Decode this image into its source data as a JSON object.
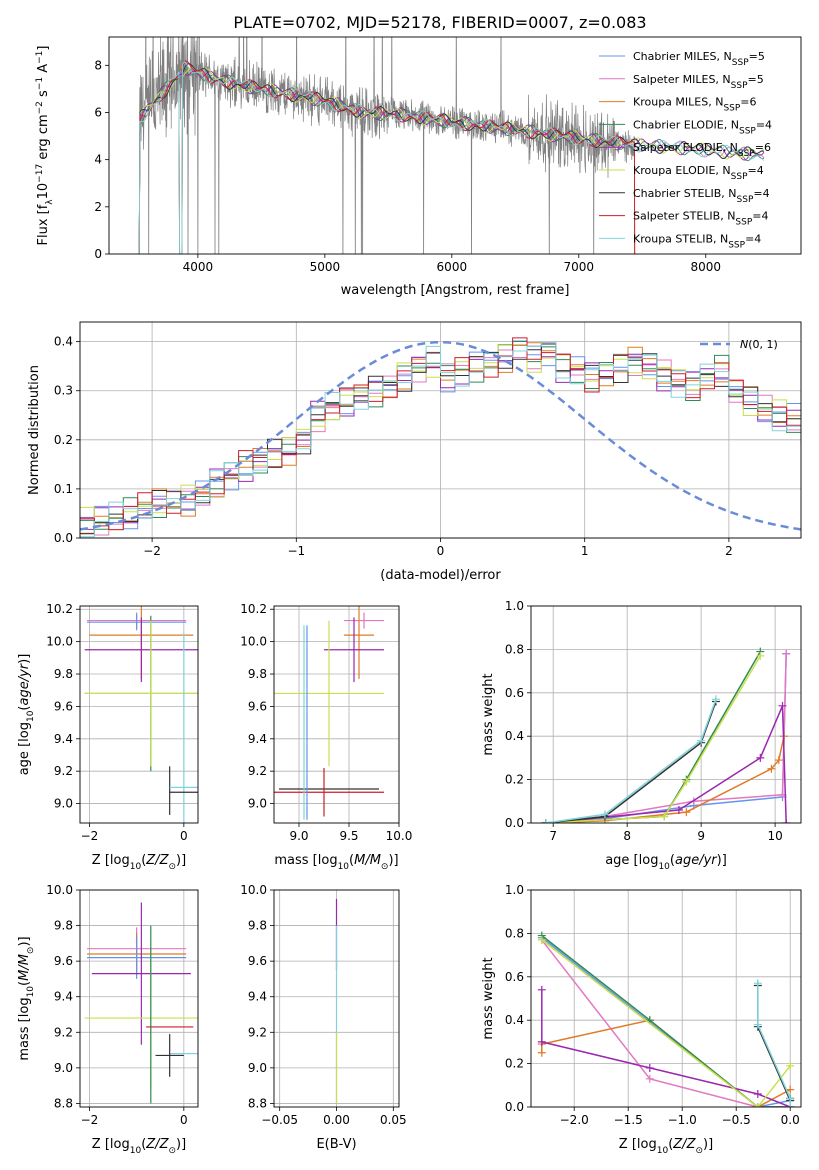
{
  "figure_title": "PLATE=0702, MJD=52178, FIBERID=0007, z=0.083",
  "colors": {
    "data": "#808080",
    "chabrier_miles": "#6495ED",
    "salpeter_miles": "#E377C2",
    "kroupa_miles": "#E07B24",
    "chabrier_elodie": "#2E8B57",
    "salpeter_elodie": "#9B27AF",
    "kroupa_elodie": "#C9E04C",
    "chabrier_stelib": "#333333",
    "salpeter_stelib": "#CC1E2E",
    "kroupa_stelib": "#7FD4DC",
    "normal": "#6A8BD8"
  },
  "legend": {
    "entries": [
      {
        "key": "chabrier_miles",
        "label": "Chabrier MILES, N",
        "sub": "SSP",
        "suffix": "=5"
      },
      {
        "key": "salpeter_miles",
        "label": "Salpeter MILES, N",
        "sub": "SSP",
        "suffix": "=5"
      },
      {
        "key": "kroupa_miles",
        "label": "Kroupa MILES, N",
        "sub": "SSP",
        "suffix": "=6"
      },
      {
        "key": "chabrier_elodie",
        "label": "Chabrier ELODIE, N",
        "sub": "SSP",
        "suffix": "=4"
      },
      {
        "key": "salpeter_elodie",
        "label": "Salpeter ELODIE, N",
        "sub": "SSP",
        "suffix": "=6"
      },
      {
        "key": "kroupa_elodie",
        "label": "Kroupa ELODIE, N",
        "sub": "SSP",
        "suffix": "=4"
      },
      {
        "key": "chabrier_stelib",
        "label": "Chabrier STELIB, N",
        "sub": "SSP",
        "suffix": "=4"
      },
      {
        "key": "salpeter_stelib",
        "label": "Salpeter STELIB, N",
        "sub": "SSP",
        "suffix": "=4"
      },
      {
        "key": "kroupa_stelib",
        "label": "Kroupa STELIB, N",
        "sub": "SSP",
        "suffix": "=4"
      }
    ]
  },
  "chart_data": [
    {
      "type": "line",
      "id": "spectrum",
      "xlabel": "wavelength [Angstrom, rest frame]",
      "ylabel_main": "Flux [f",
      "ylabel_sub": "λ",
      "ylabel_rest": "10",
      "ylabel_sup1": "−17",
      "ylabel_mid": " erg cm",
      "ylabel_sup2": "−2",
      "ylabel_s": " s",
      "ylabel_sup3": "−1",
      "ylabel_end": " A",
      "ylabel_sup4": "−1",
      "ylabel_close": "]",
      "xlim": [
        3300,
        8750
      ],
      "ylim": [
        0,
        9.2
      ],
      "xticks": [
        4000,
        5000,
        6000,
        7000,
        8000
      ],
      "yticks": [
        0,
        2,
        4,
        6,
        8
      ],
      "data_range": [
        3520,
        7440
      ],
      "model_range": [
        3520,
        8460
      ],
      "continuum": [
        [
          3520,
          5.6
        ],
        [
          3700,
          6.7
        ],
        [
          3900,
          7.9
        ],
        [
          4100,
          7.5
        ],
        [
          4300,
          7.2
        ],
        [
          4600,
          6.9
        ],
        [
          5000,
          6.5
        ],
        [
          5300,
          6.0
        ],
        [
          5600,
          5.9
        ],
        [
          6000,
          5.6
        ],
        [
          6300,
          5.4
        ],
        [
          6600,
          5.2
        ],
        [
          7000,
          4.9
        ],
        [
          7400,
          4.65
        ],
        [
          7800,
          4.5
        ],
        [
          8200,
          4.3
        ],
        [
          8460,
          4.2
        ]
      ],
      "series": [
        "chabrier_miles",
        "salpeter_miles",
        "kroupa_miles",
        "chabrier_elodie",
        "salpeter_elodie",
        "kroupa_elodie",
        "chabrier_stelib",
        "salpeter_stelib",
        "kroupa_stelib"
      ]
    },
    {
      "type": "histogram",
      "id": "residuals",
      "xlabel": "(data-model)/error",
      "ylabel": "Normed distribution",
      "xlim": [
        -2.5,
        2.5
      ],
      "ylim": [
        0,
        0.44
      ],
      "xticks": [
        -2,
        -1,
        0,
        1,
        2
      ],
      "yticks": [
        0.0,
        0.1,
        0.2,
        0.3,
        0.4
      ],
      "legend_label": "N(0, 1)",
      "bin_edges_start": -2.5,
      "bin_width": 0.1,
      "base": [
        0.03,
        0.035,
        0.04,
        0.05,
        0.06,
        0.07,
        0.072,
        0.075,
        0.09,
        0.11,
        0.13,
        0.145,
        0.155,
        0.17,
        0.18,
        0.2,
        0.25,
        0.265,
        0.28,
        0.29,
        0.3,
        0.31,
        0.33,
        0.35,
        0.36,
        0.33,
        0.34,
        0.35,
        0.36,
        0.37,
        0.39,
        0.37,
        0.38,
        0.35,
        0.34,
        0.33,
        0.34,
        0.35,
        0.36,
        0.35,
        0.33,
        0.32,
        0.31,
        0.33,
        0.34,
        0.3,
        0.28,
        0.26,
        0.25,
        0.24,
        0.22,
        0.21,
        0.2,
        0.19,
        0.17,
        0.16,
        0.15,
        0.13,
        0.12,
        0.11,
        0.1,
        0.09,
        0.08,
        0.075,
        0.07,
        0.065,
        0.06,
        0.055,
        0.05,
        0.045,
        0.04,
        0.04,
        0.035,
        0.035,
        0.03,
        0.03,
        0.03,
        0.03,
        0.03,
        0.03
      ],
      "series": [
        "chabrier_miles",
        "salpeter_miles",
        "kroupa_miles",
        "chabrier_elodie",
        "salpeter_elodie",
        "kroupa_elodie",
        "chabrier_stelib",
        "salpeter_stelib",
        "kroupa_stelib"
      ]
    },
    {
      "type": "errorbar",
      "id": "z_age",
      "xlabel": "Z [log10(Z/Z⊙)]",
      "ylabel": "age  [log10(age/yr)]",
      "xlim": [
        -2.2,
        0.3
      ],
      "ylim": [
        8.88,
        10.22
      ],
      "xticks": [
        -2,
        0
      ],
      "yticks": [
        9.0,
        9.2,
        9.4,
        9.6,
        9.8,
        10.0,
        10.2
      ],
      "points": [
        {
          "s": "salpeter_miles",
          "x": -1.0,
          "xe": 1.05,
          "y": 10.13,
          "ye": 0.05
        },
        {
          "s": "chabrier_miles",
          "x": -1.0,
          "xe": 1.05,
          "y": 10.12,
          "ye": 0.05
        },
        {
          "s": "kroupa_miles",
          "x": -0.9,
          "xe": 1.1,
          "y": 10.04,
          "ye": 0.27
        },
        {
          "s": "salpeter_elodie",
          "x": -0.9,
          "xe": 1.2,
          "y": 9.95,
          "ye": 0.2
        },
        {
          "s": "chabrier_elodie",
          "x": -0.7,
          "xe": 1.4,
          "y": 9.68,
          "ye": 0.48
        },
        {
          "s": "kroupa_elodie",
          "x": -0.7,
          "xe": 1.4,
          "y": 9.68,
          "ye": 0.45
        },
        {
          "s": "chabrier_stelib",
          "x": -0.3,
          "xe": 0.0,
          "y": 9.08,
          "ye": 0.15
        },
        {
          "s": "kroupa_stelib",
          "x": 0.0,
          "xe": 0.3,
          "y": 9.1,
          "ye": 0.95
        },
        {
          "s": "chabrier_stelib",
          "x": 0.0,
          "xe": 0.3,
          "y": 9.07,
          "ye": 0.0
        }
      ]
    },
    {
      "type": "errorbar",
      "id": "mass_age",
      "xlabel": "mass [log10(M/M⊙)]",
      "ylabel": "",
      "xlim": [
        8.75,
        10.0
      ],
      "ylim": [
        8.88,
        10.22
      ],
      "xticks": [
        9.0,
        9.5,
        10.0
      ],
      "yticks": [
        9.0,
        9.2,
        9.4,
        9.6,
        9.8,
        10.0,
        10.2
      ],
      "points": [
        {
          "s": "salpeter_miles",
          "x": 9.65,
          "xe": 0.2,
          "y": 10.13,
          "ye": 0.05
        },
        {
          "s": "kroupa_miles",
          "x": 9.6,
          "xe": 0.15,
          "y": 10.04,
          "ye": 0.27
        },
        {
          "s": "salpeter_elodie",
          "x": 9.55,
          "xe": 0.3,
          "y": 9.95,
          "ye": 0.2
        },
        {
          "s": "kroupa_elodie",
          "x": 9.3,
          "xe": 0.55,
          "y": 9.68,
          "ye": 0.45
        },
        {
          "s": "chabrier_elodie",
          "x": 9.08,
          "xe": 0.0,
          "y": 9.68,
          "ye": 0.0
        },
        {
          "s": "chabrier_stelib",
          "x": 9.3,
          "xe": 0.5,
          "y": 9.09,
          "ye": 0.0
        },
        {
          "s": "salpeter_stelib",
          "x": 9.25,
          "xe": 0.6,
          "y": 9.07,
          "ye": 0.15
        },
        {
          "s": "kroupa_stelib",
          "x": 9.05,
          "xe": 0.0,
          "y": 9.5,
          "ye": 0.6
        },
        {
          "s": "chabrier_miles",
          "x": 9.08,
          "xe": 0.0,
          "y": 9.5,
          "ye": 0.6
        }
      ]
    },
    {
      "type": "line",
      "id": "age_weight",
      "xlabel": "age  [log10(age/yr)]",
      "ylabel": "mass weight",
      "xlim": [
        6.7,
        10.35
      ],
      "ylim": [
        0,
        1.0
      ],
      "xticks": [
        7,
        8,
        9,
        10
      ],
      "yticks": [
        0.0,
        0.2,
        0.4,
        0.6,
        0.8,
        1.0
      ],
      "series": [
        {
          "s": "chabrier_miles",
          "pts": [
            [
              6.9,
              0.0
            ],
            [
              7.7,
              0.02
            ],
            [
              8.9,
              0.08
            ],
            [
              10.1,
              0.12
            ],
            [
              10.15,
              0.78
            ]
          ]
        },
        {
          "s": "salpeter_miles",
          "pts": [
            [
              6.9,
              0.0
            ],
            [
              7.7,
              0.03
            ],
            [
              8.9,
              0.1
            ],
            [
              10.1,
              0.13
            ],
            [
              10.15,
              0.78
            ]
          ]
        },
        {
          "s": "kroupa_miles",
          "pts": [
            [
              6.9,
              0.0
            ],
            [
              7.7,
              0.01
            ],
            [
              8.8,
              0.05
            ],
            [
              9.95,
              0.25
            ],
            [
              10.05,
              0.29
            ],
            [
              10.12,
              0.4
            ]
          ]
        },
        {
          "s": "chabrier_elodie",
          "pts": [
            [
              6.9,
              0.0
            ],
            [
              8.5,
              0.03
            ],
            [
              8.8,
              0.2
            ],
            [
              9.8,
              0.79
            ]
          ]
        },
        {
          "s": "salpeter_elodie",
          "pts": [
            [
              6.9,
              0.0
            ],
            [
              8.7,
              0.06
            ],
            [
              9.8,
              0.3
            ],
            [
              10.1,
              0.54
            ],
            [
              10.15,
              0.0
            ]
          ]
        },
        {
          "s": "kroupa_elodie",
          "pts": [
            [
              6.9,
              0.0
            ],
            [
              8.5,
              0.03
            ],
            [
              8.8,
              0.19
            ],
            [
              9.8,
              0.77
            ]
          ]
        },
        {
          "s": "chabrier_stelib",
          "pts": [
            [
              6.9,
              0.0
            ],
            [
              7.7,
              0.03
            ],
            [
              9.0,
              0.37
            ],
            [
              9.2,
              0.56
            ]
          ]
        },
        {
          "s": "kroupa_stelib",
          "pts": [
            [
              6.9,
              0.0
            ],
            [
              7.7,
              0.04
            ],
            [
              9.0,
              0.38
            ],
            [
              9.2,
              0.57
            ]
          ]
        }
      ]
    },
    {
      "type": "errorbar",
      "id": "z_mass",
      "xlabel": "Z [log10(Z/Z⊙)]",
      "ylabel": "mass [log10(M/M⊙)]",
      "xlim": [
        -2.2,
        0.3
      ],
      "ylim": [
        8.78,
        10.0
      ],
      "xticks": [
        -2,
        0
      ],
      "yticks": [
        8.8,
        9.0,
        9.2,
        9.4,
        9.6,
        9.8,
        10.0
      ],
      "points": [
        {
          "s": "salpeter_miles",
          "x": -1.0,
          "xe": 1.05,
          "y": 9.67,
          "ye": 0.12
        },
        {
          "s": "kroupa_miles",
          "x": -1.0,
          "xe": 1.05,
          "y": 9.64,
          "ye": 0.12
        },
        {
          "s": "chabrier_miles",
          "x": -1.0,
          "xe": 1.05,
          "y": 9.62,
          "ye": 0.12
        },
        {
          "s": "salpeter_elodie",
          "x": -0.9,
          "xe": 1.05,
          "y": 9.53,
          "ye": 0.4
        },
        {
          "s": "kroupa_elodie",
          "x": -0.7,
          "xe": 1.4,
          "y": 9.28,
          "ye": 0.4
        },
        {
          "s": "chabrier_elodie",
          "x": -0.7,
          "xe": 0.0,
          "y": 9.3,
          "ye": 0.5
        },
        {
          "s": "salpeter_stelib",
          "x": -0.3,
          "xe": 0.5,
          "y": 9.23,
          "ye": 0.0
        },
        {
          "s": "kroupa_stelib",
          "x": 0.0,
          "xe": 0.3,
          "y": 9.08,
          "ye": 0.0
        },
        {
          "s": "chabrier_stelib",
          "x": -0.3,
          "xe": 0.3,
          "y": 9.07,
          "ye": 0.12
        }
      ]
    },
    {
      "type": "errorbar",
      "id": "ebv_mass",
      "xlabel": "E(B-V)",
      "ylabel": "",
      "xlim": [
        -0.055,
        0.055
      ],
      "ylim": [
        8.78,
        10.0
      ],
      "xticks": [
        -0.05,
        0.0,
        0.05
      ],
      "yticks": [
        8.8,
        9.0,
        9.2,
        9.4,
        9.6,
        9.8,
        10.0
      ],
      "points": [
        {
          "s": "salpeter_elodie",
          "x": 0.0,
          "xe": 0.0,
          "y": 9.75,
          "ye": 0.2
        },
        {
          "s": "kroupa_stelib",
          "x": 0.0,
          "xe": 0.0,
          "y": 9.3,
          "ye": 0.5
        },
        {
          "s": "kroupa_elodie",
          "x": 0.0,
          "xe": 0.0,
          "y": 9.0,
          "ye": 0.2
        }
      ]
    },
    {
      "type": "line",
      "id": "z_weight",
      "xlabel": "Z [log10(Z/Z⊙)]",
      "ylabel": "mass weight",
      "xlim": [
        -2.4,
        0.1
      ],
      "ylim": [
        0,
        1.0
      ],
      "xticks": [
        -2.0,
        -1.5,
        -1.0,
        -0.5,
        0.0
      ],
      "yticks": [
        0.0,
        0.2,
        0.4,
        0.6,
        0.8,
        1.0
      ],
      "series": [
        {
          "s": "chabrier_miles",
          "pts": [
            [
              -2.3,
              0.78
            ],
            [
              -0.3,
              0.0
            ],
            [
              0.0,
              0.03
            ]
          ]
        },
        {
          "s": "salpeter_miles",
          "pts": [
            [
              -2.3,
              0.77
            ],
            [
              -1.3,
              0.13
            ],
            [
              -0.3,
              0.0
            ],
            [
              0.0,
              0.0
            ]
          ]
        },
        {
          "s": "kroupa_miles",
          "pts": [
            [
              -2.3,
              0.25
            ],
            [
              -2.3,
              0.29
            ],
            [
              -1.3,
              0.4
            ],
            [
              -0.3,
              0.0
            ],
            [
              0.0,
              0.08
            ]
          ]
        },
        {
          "s": "chabrier_elodie",
          "pts": [
            [
              -2.3,
              0.79
            ],
            [
              -1.3,
              0.4
            ],
            [
              -0.3,
              0.0
            ],
            [
              0.0,
              0.0
            ]
          ]
        },
        {
          "s": "salpeter_elodie",
          "pts": [
            [
              -2.3,
              0.54
            ],
            [
              -2.3,
              0.3
            ],
            [
              -1.3,
              0.18
            ],
            [
              -0.3,
              0.06
            ],
            [
              0.0,
              0.0
            ]
          ]
        },
        {
          "s": "kroupa_elodie",
          "pts": [
            [
              -2.3,
              0.77
            ],
            [
              -0.3,
              0.0
            ],
            [
              0.0,
              0.19
            ]
          ]
        },
        {
          "s": "chabrier_stelib",
          "pts": [
            [
              -0.3,
              0.56
            ],
            [
              -0.3,
              0.37
            ],
            [
              0.0,
              0.03
            ],
            [
              0.0,
              0.04
            ]
          ]
        },
        {
          "s": "kroupa_stelib",
          "pts": [
            [
              -0.3,
              0.57
            ],
            [
              -0.3,
              0.38
            ],
            [
              0.0,
              0.04
            ],
            [
              0.0,
              0.0
            ]
          ]
        }
      ]
    }
  ]
}
